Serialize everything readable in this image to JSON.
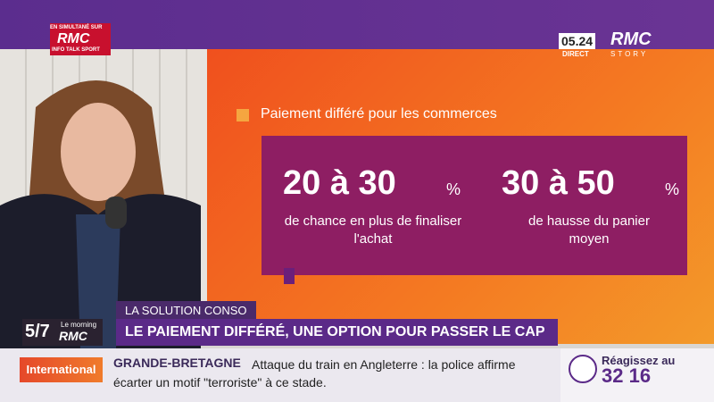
{
  "top_left_logo": {
    "simulcast": "EN SIMULTANÉ SUR",
    "brand": "RMC",
    "tagline": "INFO TALK SPORT"
  },
  "top_right_logo": {
    "time": "05.24",
    "brand": "RMC",
    "live": "DIRECT",
    "channel": "STORY"
  },
  "infographic": {
    "title": "Paiement différé pour les commerces",
    "stats": [
      {
        "figure": "20 à 30",
        "unit": "%",
        "caption": "de chance en plus de finaliser l'achat"
      },
      {
        "figure": "30 à 50",
        "unit": "%",
        "caption": "de hausse du panier moyen"
      }
    ]
  },
  "lower_third": {
    "kicker": "LA SOLUTION CONSO",
    "headline": "LE PAIEMENT DIFFÉRÉ, UNE OPTION POUR PASSER LE CAP"
  },
  "show_logo": {
    "show": "5/7",
    "subtitle": "Le morning",
    "brand": "RMC"
  },
  "ticker": {
    "section": "International",
    "topic": "GRANDE-BRETAGNE",
    "text": "Attaque du train en Angleterre : la police affirme écarter un motif \"terroriste\" à ce stade."
  },
  "call_in": {
    "prompt": "Réagissez au",
    "number": "32 16"
  }
}
